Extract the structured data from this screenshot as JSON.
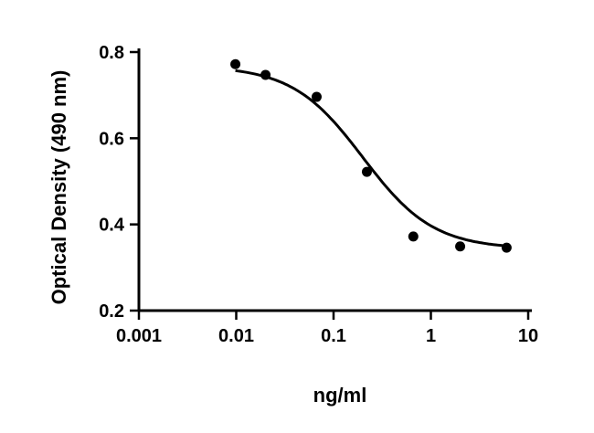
{
  "chart_data": {
    "type": "scatter",
    "title": "",
    "xlabel": "ng/ml",
    "ylabel": "Optical Density (490 nm)",
    "x_scale": "log",
    "xlim": [
      0.001,
      10
    ],
    "ylim": [
      0.2,
      0.8
    ],
    "x_ticks": [
      0.001,
      0.01,
      0.1,
      1,
      10
    ],
    "x_tick_labels": [
      "0.001",
      "0.01",
      "0.1",
      "1",
      "10"
    ],
    "y_ticks": [
      0.2,
      0.4,
      0.6,
      0.8
    ],
    "y_tick_labels": [
      "0.2",
      "0.4",
      "0.6",
      "0.8"
    ],
    "grid": false,
    "series": [
      {
        "points": [
          {
            "x": 0.0098,
            "y": 0.772
          },
          {
            "x": 0.02,
            "y": 0.747
          },
          {
            "x": 0.067,
            "y": 0.696
          },
          {
            "x": 0.22,
            "y": 0.522
          },
          {
            "x": 0.66,
            "y": 0.372
          },
          {
            "x": 2.0,
            "y": 0.349
          },
          {
            "x": 6.0,
            "y": 0.346
          }
        ],
        "fit": {
          "model": "four-parameter logistic",
          "top": 0.768,
          "bottom": 0.343,
          "ec50": 0.2,
          "hill": 1.2
        }
      }
    ]
  }
}
